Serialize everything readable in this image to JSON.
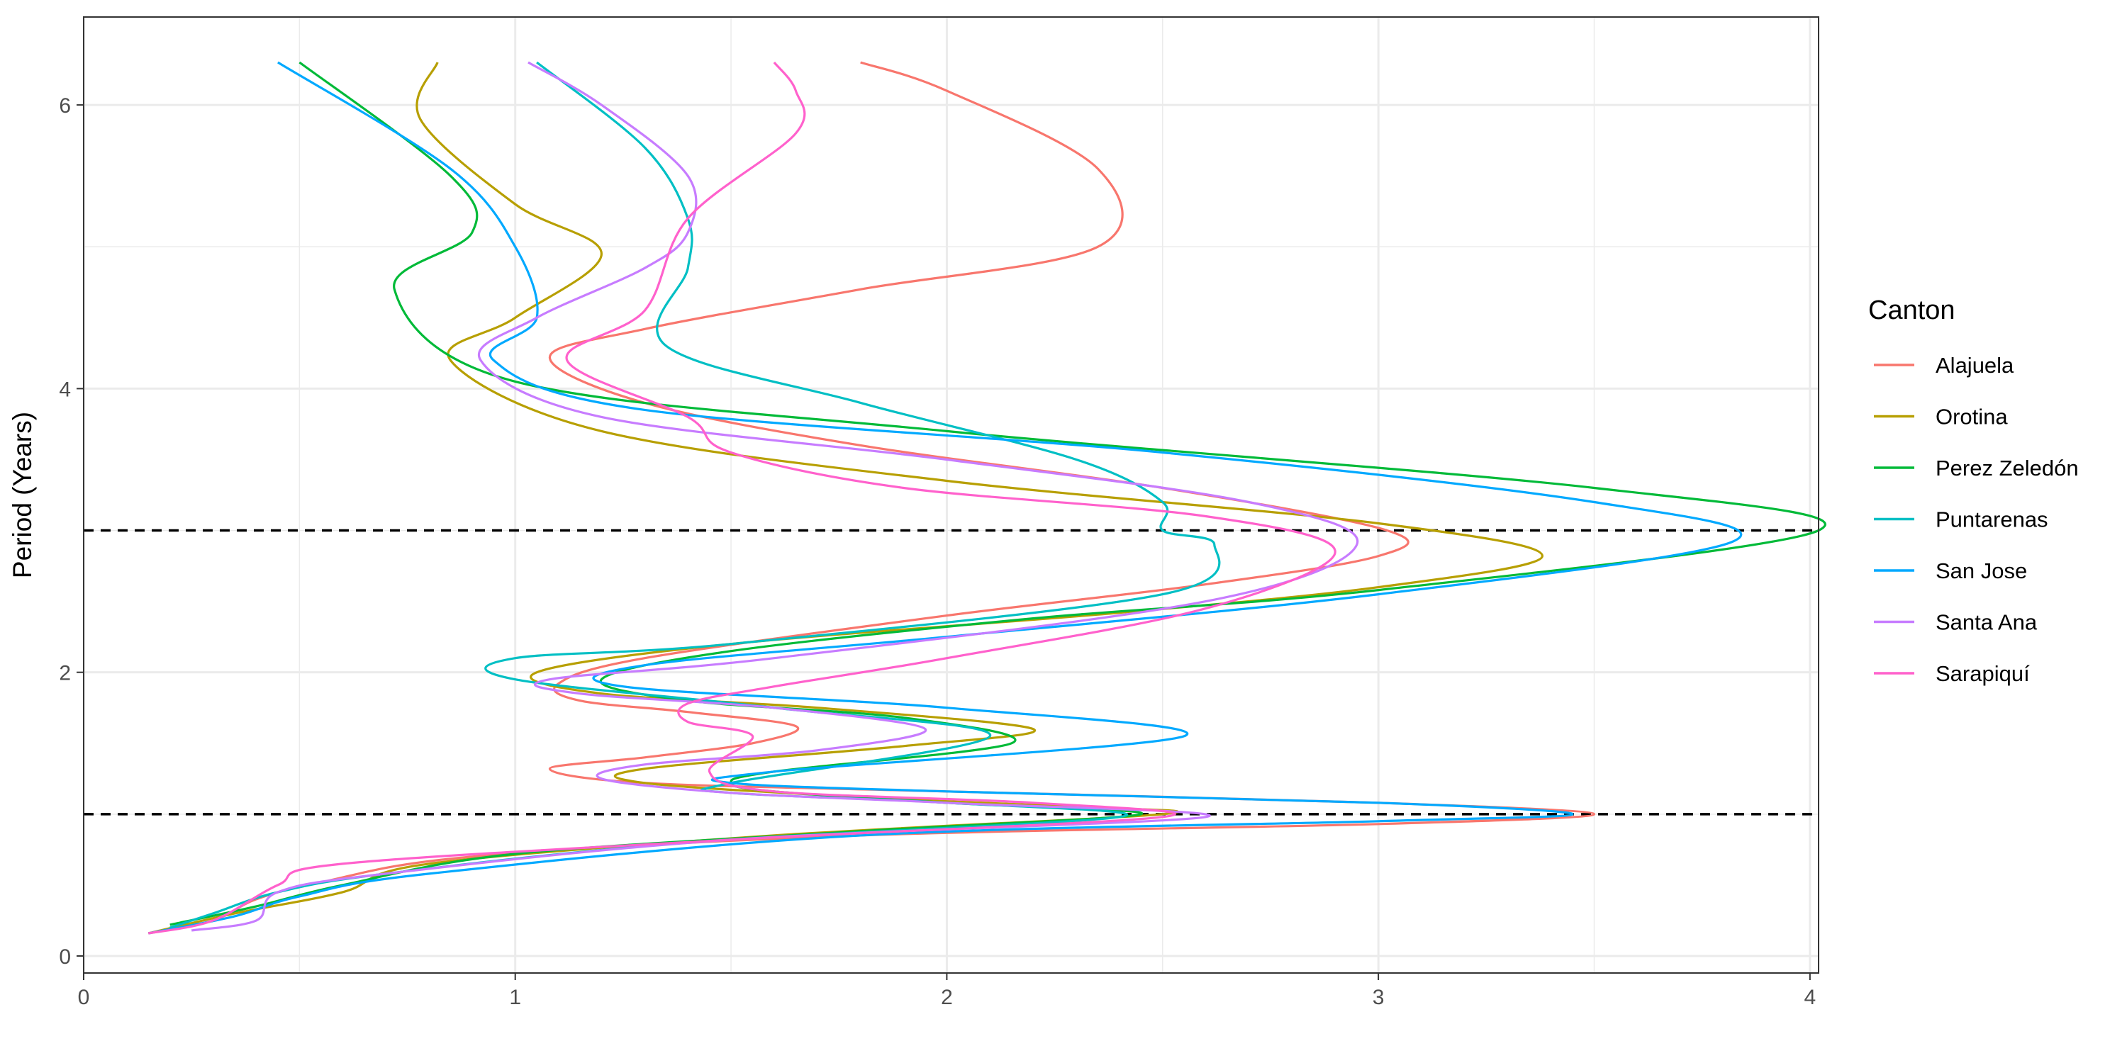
{
  "chart_data": {
    "type": "line",
    "title": "",
    "xlabel": "",
    "ylabel": "Period (Years)",
    "xlim": [
      0,
      4.02
    ],
    "ylim": [
      -0.12,
      6.62
    ],
    "x_ticks": [
      "0",
      "1",
      "2",
      "3",
      "4"
    ],
    "y_ticks": [
      "0",
      "2",
      "4",
      "6"
    ],
    "grid": true,
    "legend": {
      "title": "Canton",
      "position": "right"
    },
    "reference_lines": [
      {
        "y": 1,
        "style": "dashed",
        "color": "#000000"
      },
      {
        "y": 3,
        "style": "dashed",
        "color": "#000000"
      }
    ],
    "series": [
      {
        "name": "Alajuela",
        "color": "#F8766D",
        "points": [
          [
            0.15,
            0.16
          ],
          [
            0.3,
            0.25
          ],
          [
            0.4,
            0.4
          ],
          [
            0.55,
            0.52
          ],
          [
            0.9,
            0.7
          ],
          [
            1.8,
            0.85
          ],
          [
            3.0,
            0.93
          ],
          [
            3.5,
            1.0
          ],
          [
            3.0,
            1.08
          ],
          [
            2.0,
            1.16
          ],
          [
            1.3,
            1.22
          ],
          [
            1.08,
            1.32
          ],
          [
            1.3,
            1.4
          ],
          [
            1.55,
            1.5
          ],
          [
            1.65,
            1.62
          ],
          [
            1.4,
            1.72
          ],
          [
            1.15,
            1.8
          ],
          [
            1.1,
            1.92
          ],
          [
            1.3,
            2.1
          ],
          [
            2.0,
            2.4
          ],
          [
            2.6,
            2.62
          ],
          [
            3.0,
            2.82
          ],
          [
            3.02,
            3.0
          ],
          [
            2.5,
            3.3
          ],
          [
            1.8,
            3.6
          ],
          [
            1.3,
            3.9
          ],
          [
            1.08,
            4.22
          ],
          [
            1.3,
            4.42
          ],
          [
            1.8,
            4.7
          ],
          [
            2.35,
            5.0
          ],
          [
            2.35,
            5.55
          ],
          [
            2.0,
            6.1
          ],
          [
            1.8,
            6.3
          ]
        ]
      },
      {
        "name": "Orotina",
        "color": "#B79F00",
        "points": [
          [
            0.15,
            0.16
          ],
          [
            0.35,
            0.3
          ],
          [
            0.6,
            0.45
          ],
          [
            0.8,
            0.65
          ],
          [
            1.6,
            0.85
          ],
          [
            2.5,
            1.0
          ],
          [
            2.3,
            1.05
          ],
          [
            1.8,
            1.12
          ],
          [
            1.3,
            1.22
          ],
          [
            1.3,
            1.32
          ],
          [
            1.9,
            1.48
          ],
          [
            2.2,
            1.6
          ],
          [
            1.7,
            1.75
          ],
          [
            1.2,
            1.85
          ],
          [
            1.05,
            2.0
          ],
          [
            1.5,
            2.2
          ],
          [
            2.4,
            2.42
          ],
          [
            3.0,
            2.6
          ],
          [
            3.38,
            2.82
          ],
          [
            3.0,
            3.05
          ],
          [
            2.0,
            3.35
          ],
          [
            1.2,
            3.7
          ],
          [
            0.85,
            4.2
          ],
          [
            1.0,
            4.5
          ],
          [
            1.2,
            4.95
          ],
          [
            1.0,
            5.3
          ],
          [
            0.78,
            5.9
          ],
          [
            0.82,
            6.3
          ]
        ]
      },
      {
        "name": "Perez Zeledón",
        "color": "#00BA38",
        "points": [
          [
            0.2,
            0.22
          ],
          [
            0.4,
            0.35
          ],
          [
            0.6,
            0.5
          ],
          [
            1.0,
            0.72
          ],
          [
            1.8,
            0.88
          ],
          [
            2.45,
            1.0
          ],
          [
            2.0,
            1.08
          ],
          [
            1.6,
            1.16
          ],
          [
            1.5,
            1.22
          ],
          [
            1.6,
            1.3
          ],
          [
            2.15,
            1.5
          ],
          [
            1.9,
            1.68
          ],
          [
            1.4,
            1.8
          ],
          [
            1.2,
            1.95
          ],
          [
            1.5,
            2.15
          ],
          [
            2.2,
            2.38
          ],
          [
            3.0,
            2.58
          ],
          [
            4.02,
            3.0
          ],
          [
            3.5,
            3.3
          ],
          [
            2.0,
            3.7
          ],
          [
            1.0,
            4.05
          ],
          [
            0.72,
            4.7
          ],
          [
            0.9,
            5.1
          ],
          [
            0.85,
            5.5
          ],
          [
            0.5,
            6.3
          ]
        ]
      },
      {
        "name": "Puntarenas",
        "color": "#00BFC4",
        "points": [
          [
            0.2,
            0.2
          ],
          [
            0.3,
            0.3
          ],
          [
            0.45,
            0.45
          ],
          [
            0.7,
            0.58
          ],
          [
            1.4,
            0.8
          ],
          [
            2.4,
            0.98
          ],
          [
            2.0,
            1.08
          ],
          [
            1.5,
            1.15
          ],
          [
            1.5,
            1.22
          ],
          [
            2.1,
            1.55
          ],
          [
            1.6,
            1.75
          ],
          [
            1.0,
            1.95
          ],
          [
            1.0,
            2.1
          ],
          [
            1.5,
            2.2
          ],
          [
            2.5,
            2.55
          ],
          [
            2.62,
            2.9
          ],
          [
            2.5,
            3.0
          ],
          [
            2.5,
            3.2
          ],
          [
            2.3,
            3.5
          ],
          [
            1.8,
            3.9
          ],
          [
            1.35,
            4.3
          ],
          [
            1.4,
            4.85
          ],
          [
            1.4,
            5.2
          ],
          [
            1.3,
            5.7
          ],
          [
            1.05,
            6.3
          ]
        ]
      },
      {
        "name": "San Jose",
        "color": "#00A9FF",
        "points": [
          [
            0.15,
            0.16
          ],
          [
            0.35,
            0.28
          ],
          [
            0.5,
            0.42
          ],
          [
            0.8,
            0.58
          ],
          [
            1.8,
            0.85
          ],
          [
            3.0,
            0.95
          ],
          [
            3.45,
            1.0
          ],
          [
            3.0,
            1.08
          ],
          [
            2.0,
            1.16
          ],
          [
            1.5,
            1.22
          ],
          [
            1.6,
            1.3
          ],
          [
            2.55,
            1.55
          ],
          [
            2.0,
            1.75
          ],
          [
            1.25,
            1.9
          ],
          [
            1.3,
            2.05
          ],
          [
            2.0,
            2.25
          ],
          [
            3.0,
            2.55
          ],
          [
            3.82,
            2.92
          ],
          [
            3.5,
            3.2
          ],
          [
            2.5,
            3.55
          ],
          [
            1.3,
            3.85
          ],
          [
            0.95,
            4.2
          ],
          [
            1.05,
            4.5
          ],
          [
            1.0,
            5.0
          ],
          [
            0.85,
            5.55
          ],
          [
            0.45,
            6.3
          ]
        ]
      },
      {
        "name": "Santa Ana",
        "color": "#C77CFF",
        "points": [
          [
            0.25,
            0.18
          ],
          [
            0.4,
            0.25
          ],
          [
            0.45,
            0.45
          ],
          [
            0.7,
            0.58
          ],
          [
            1.5,
            0.82
          ],
          [
            2.6,
            0.98
          ],
          [
            2.0,
            1.08
          ],
          [
            1.5,
            1.15
          ],
          [
            1.2,
            1.25
          ],
          [
            1.3,
            1.35
          ],
          [
            1.7,
            1.45
          ],
          [
            1.95,
            1.6
          ],
          [
            1.6,
            1.75
          ],
          [
            1.15,
            1.85
          ],
          [
            1.08,
            1.95
          ],
          [
            1.6,
            2.1
          ],
          [
            2.6,
            2.5
          ],
          [
            2.95,
            2.9
          ],
          [
            2.7,
            3.2
          ],
          [
            2.0,
            3.5
          ],
          [
            1.2,
            3.8
          ],
          [
            0.92,
            4.2
          ],
          [
            1.05,
            4.5
          ],
          [
            1.3,
            4.85
          ],
          [
            1.4,
            5.1
          ],
          [
            1.4,
            5.5
          ],
          [
            1.2,
            6.0
          ],
          [
            1.03,
            6.3
          ]
        ]
      },
      {
        "name": "Sarapiquí",
        "color": "#FF61CC",
        "points": [
          [
            0.15,
            0.16
          ],
          [
            0.3,
            0.25
          ],
          [
            0.45,
            0.5
          ],
          [
            0.6,
            0.65
          ],
          [
            1.5,
            0.82
          ],
          [
            2.5,
            0.98
          ],
          [
            2.2,
            1.08
          ],
          [
            1.6,
            1.16
          ],
          [
            1.45,
            1.3
          ],
          [
            1.55,
            1.55
          ],
          [
            1.4,
            1.65
          ],
          [
            1.4,
            1.78
          ],
          [
            1.6,
            1.9
          ],
          [
            2.0,
            2.1
          ],
          [
            2.6,
            2.45
          ],
          [
            2.9,
            2.85
          ],
          [
            2.6,
            3.1
          ],
          [
            1.9,
            3.3
          ],
          [
            1.5,
            3.55
          ],
          [
            1.4,
            3.8
          ],
          [
            1.12,
            4.2
          ],
          [
            1.3,
            4.55
          ],
          [
            1.4,
            5.2
          ],
          [
            1.65,
            5.8
          ],
          [
            1.65,
            6.1
          ],
          [
            1.6,
            6.3
          ]
        ]
      }
    ]
  }
}
